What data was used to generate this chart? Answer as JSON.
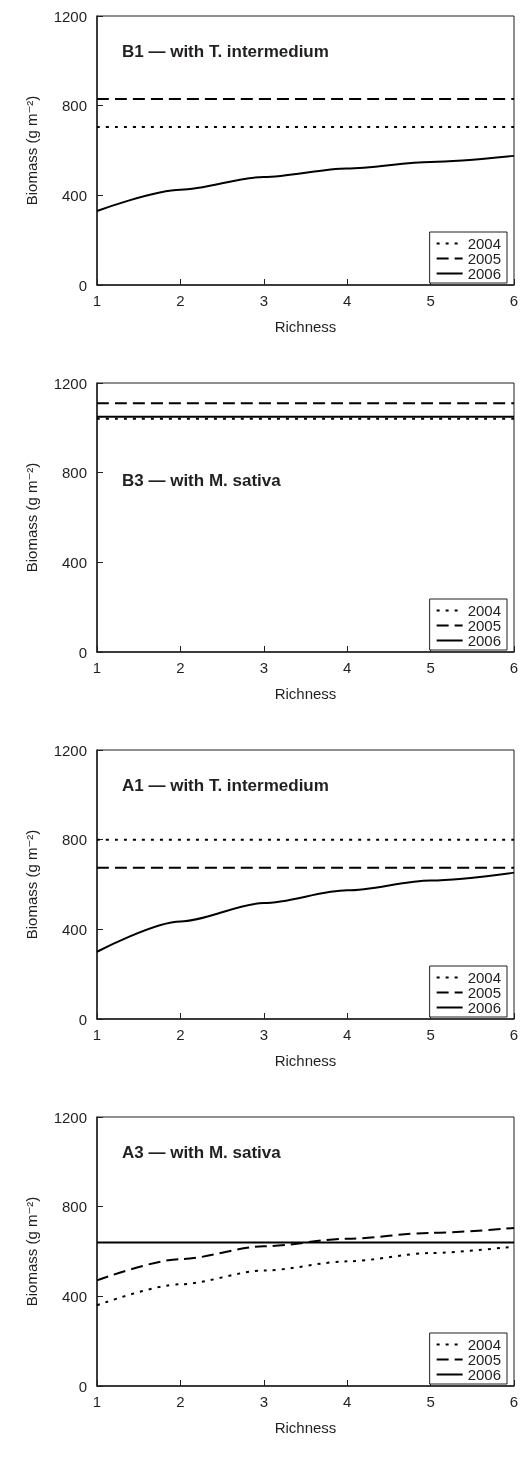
{
  "chart_data": [
    {
      "type": "line",
      "title": "B1 — with T. intermedium",
      "xlabel": "Richness",
      "ylabel": "Biomass (g m⁻²)",
      "xlim": [
        1,
        6
      ],
      "xticks": [
        1,
        2,
        3,
        4,
        5,
        6
      ],
      "ylim": [
        0,
        1200
      ],
      "yticks": [
        0,
        400,
        800,
        1200
      ],
      "grid": false,
      "legend": "bottom right",
      "marker": "none",
      "series": [
        {
          "name": "2004",
          "color": "#000000",
          "line_style": "dotted",
          "x": [
            1,
            6
          ],
          "values": [
            705,
            705
          ]
        },
        {
          "name": "2005",
          "color": "#000000",
          "line_style": "dashed",
          "x": [
            1,
            6
          ],
          "values": [
            830,
            830
          ]
        },
        {
          "name": "2006",
          "color": "#000000",
          "line_style": "solid",
          "x": [
            1,
            2,
            3,
            4,
            5,
            6
          ],
          "values": [
            330,
            425,
            482,
            520,
            549,
            576
          ]
        }
      ]
    },
    {
      "type": "line",
      "title": "B3 — with M. sativa",
      "xlabel": "Richness",
      "ylabel": "Biomass (g m⁻²)",
      "xlim": [
        1,
        6
      ],
      "xticks": [
        1,
        2,
        3,
        4,
        5,
        6
      ],
      "ylim": [
        0,
        1200
      ],
      "yticks": [
        0,
        400,
        800,
        1200
      ],
      "grid": false,
      "legend": "bottom right",
      "marker": "none",
      "series": [
        {
          "name": "2004",
          "color": "#000000",
          "line_style": "dotted",
          "x": [
            1,
            6
          ],
          "values": [
            1040,
            1040
          ]
        },
        {
          "name": "2005",
          "color": "#000000",
          "line_style": "dashed",
          "x": [
            1,
            6
          ],
          "values": [
            1110,
            1110
          ]
        },
        {
          "name": "2006",
          "color": "#000000",
          "line_style": "solid",
          "x": [
            1,
            6
          ],
          "values": [
            1050,
            1050
          ]
        }
      ]
    },
    {
      "type": "line",
      "title": "A1 — with T. intermedium",
      "xlabel": "Richness",
      "ylabel": "Biomass (g m⁻²)",
      "xlim": [
        1,
        6
      ],
      "xticks": [
        1,
        2,
        3,
        4,
        5,
        6
      ],
      "ylim": [
        0,
        1200
      ],
      "yticks": [
        0,
        400,
        800,
        1200
      ],
      "grid": false,
      "legend": "bottom right",
      "marker": "none",
      "series": [
        {
          "name": "2004",
          "color": "#000000",
          "line_style": "dotted",
          "x": [
            1,
            6
          ],
          "values": [
            800,
            800
          ]
        },
        {
          "name": "2005",
          "color": "#000000",
          "line_style": "dashed",
          "x": [
            1,
            6
          ],
          "values": [
            675,
            675
          ]
        },
        {
          "name": "2006",
          "color": "#000000",
          "line_style": "solid",
          "x": [
            1,
            2,
            3,
            4,
            5,
            6
          ],
          "values": [
            300,
            435,
            517,
            574,
            618,
            653
          ]
        }
      ]
    },
    {
      "type": "line",
      "title": "A3 — with M. sativa",
      "xlabel": "Richness",
      "ylabel": "Biomass (g m⁻²)",
      "xlim": [
        1,
        6
      ],
      "xticks": [
        1,
        2,
        3,
        4,
        5,
        6
      ],
      "ylim": [
        0,
        1200
      ],
      "yticks": [
        0,
        400,
        800,
        1200
      ],
      "grid": false,
      "legend": "bottom right",
      "marker": "none",
      "series": [
        {
          "name": "2004",
          "color": "#000000",
          "line_style": "dotted",
          "x": [
            1,
            2,
            3,
            4,
            5,
            6
          ],
          "values": [
            360,
            454,
            515,
            556,
            593,
            622
          ]
        },
        {
          "name": "2005",
          "color": "#000000",
          "line_style": "dashed",
          "x": [
            1,
            2,
            3,
            4,
            5,
            6
          ],
          "values": [
            471,
            566,
            623,
            657,
            683,
            705
          ]
        },
        {
          "name": "2006",
          "color": "#000000",
          "line_style": "solid",
          "x": [
            1,
            6
          ],
          "values": [
            640,
            640
          ]
        }
      ]
    }
  ]
}
